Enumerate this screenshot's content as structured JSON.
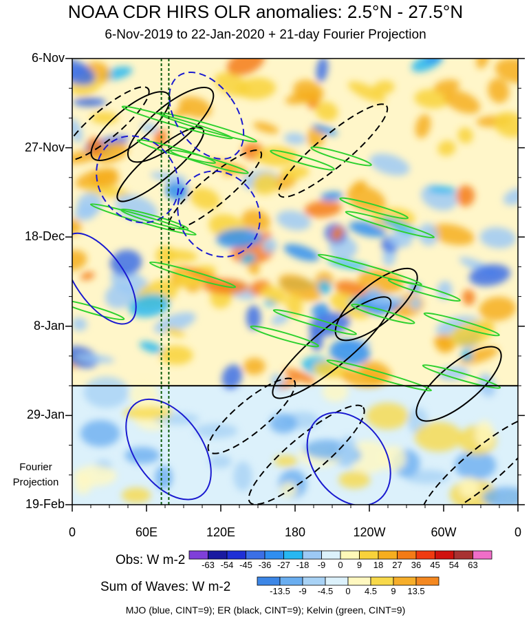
{
  "chart_data": {
    "type": "heatmap",
    "title": "NOAA CDR HIRS OLR anomalies: 2.5°N - 27.5°N",
    "subtitle": "6-Nov-2019 to 22-Jan-2020 + 21-day Fourier Projection",
    "x_ticks": [
      "0",
      "60E",
      "120E",
      "180",
      "120W",
      "60W",
      "0"
    ],
    "x_range_deg_east": [
      0,
      360
    ],
    "y_ticks": [
      "6-Nov",
      "27-Nov",
      "18-Dec",
      "8-Jan",
      "29-Jan",
      "19-Feb"
    ],
    "y_range": [
      "2019-11-06",
      "2020-02-19"
    ],
    "observation_end": "2020-01-22",
    "projection_label": "Fourier Projection",
    "reference_lines_lon": [
      72,
      78
    ],
    "obs_colorbar": {
      "title": "Obs: W m-2",
      "levels": [
        -63,
        -54,
        -45,
        -36,
        -27,
        -18,
        -9,
        0,
        9,
        18,
        27,
        36,
        45,
        54,
        63
      ],
      "labels": [
        "-63",
        "-54",
        "-45",
        "-36",
        "-27",
        "-18",
        "-9",
        "0",
        "9",
        "18",
        "27",
        "36",
        "45",
        "54",
        "63"
      ],
      "colors": [
        "#7f3fd9",
        "#1a1aa0",
        "#1f2fd6",
        "#3c6fe6",
        "#2f8ef0",
        "#27b7f2",
        "#9dc9f5",
        "#dcf1fb",
        "#fff8b8",
        "#f8d23a",
        "#f6ae1f",
        "#f47b16",
        "#f03a10",
        "#d0120e",
        "#a83232",
        "#f06ec8"
      ]
    },
    "waves_colorbar": {
      "title": "Sum of Waves: W m-2",
      "levels": [
        -13.5,
        -9,
        -4.5,
        0,
        4.5,
        9,
        13.5
      ],
      "labels": [
        "-13.5",
        "-9",
        "-4.5",
        "0",
        "4.5",
        "9",
        "13.5"
      ],
      "colors": [
        "#3c86e6",
        "#6aaef0",
        "#a8d2f5",
        "#dcf1fb",
        "#fff8c0",
        "#f8d94a",
        "#f6ae2a",
        "#f48820"
      ]
    },
    "legend_note": "MJO (blue, CINT=9); ER (black, CINT=9); Kelvin (green, CINT=9)",
    "wave_colors": {
      "mjo": "#1a1ad0",
      "er": "#000000",
      "kelvin": "#2ed12e"
    }
  }
}
